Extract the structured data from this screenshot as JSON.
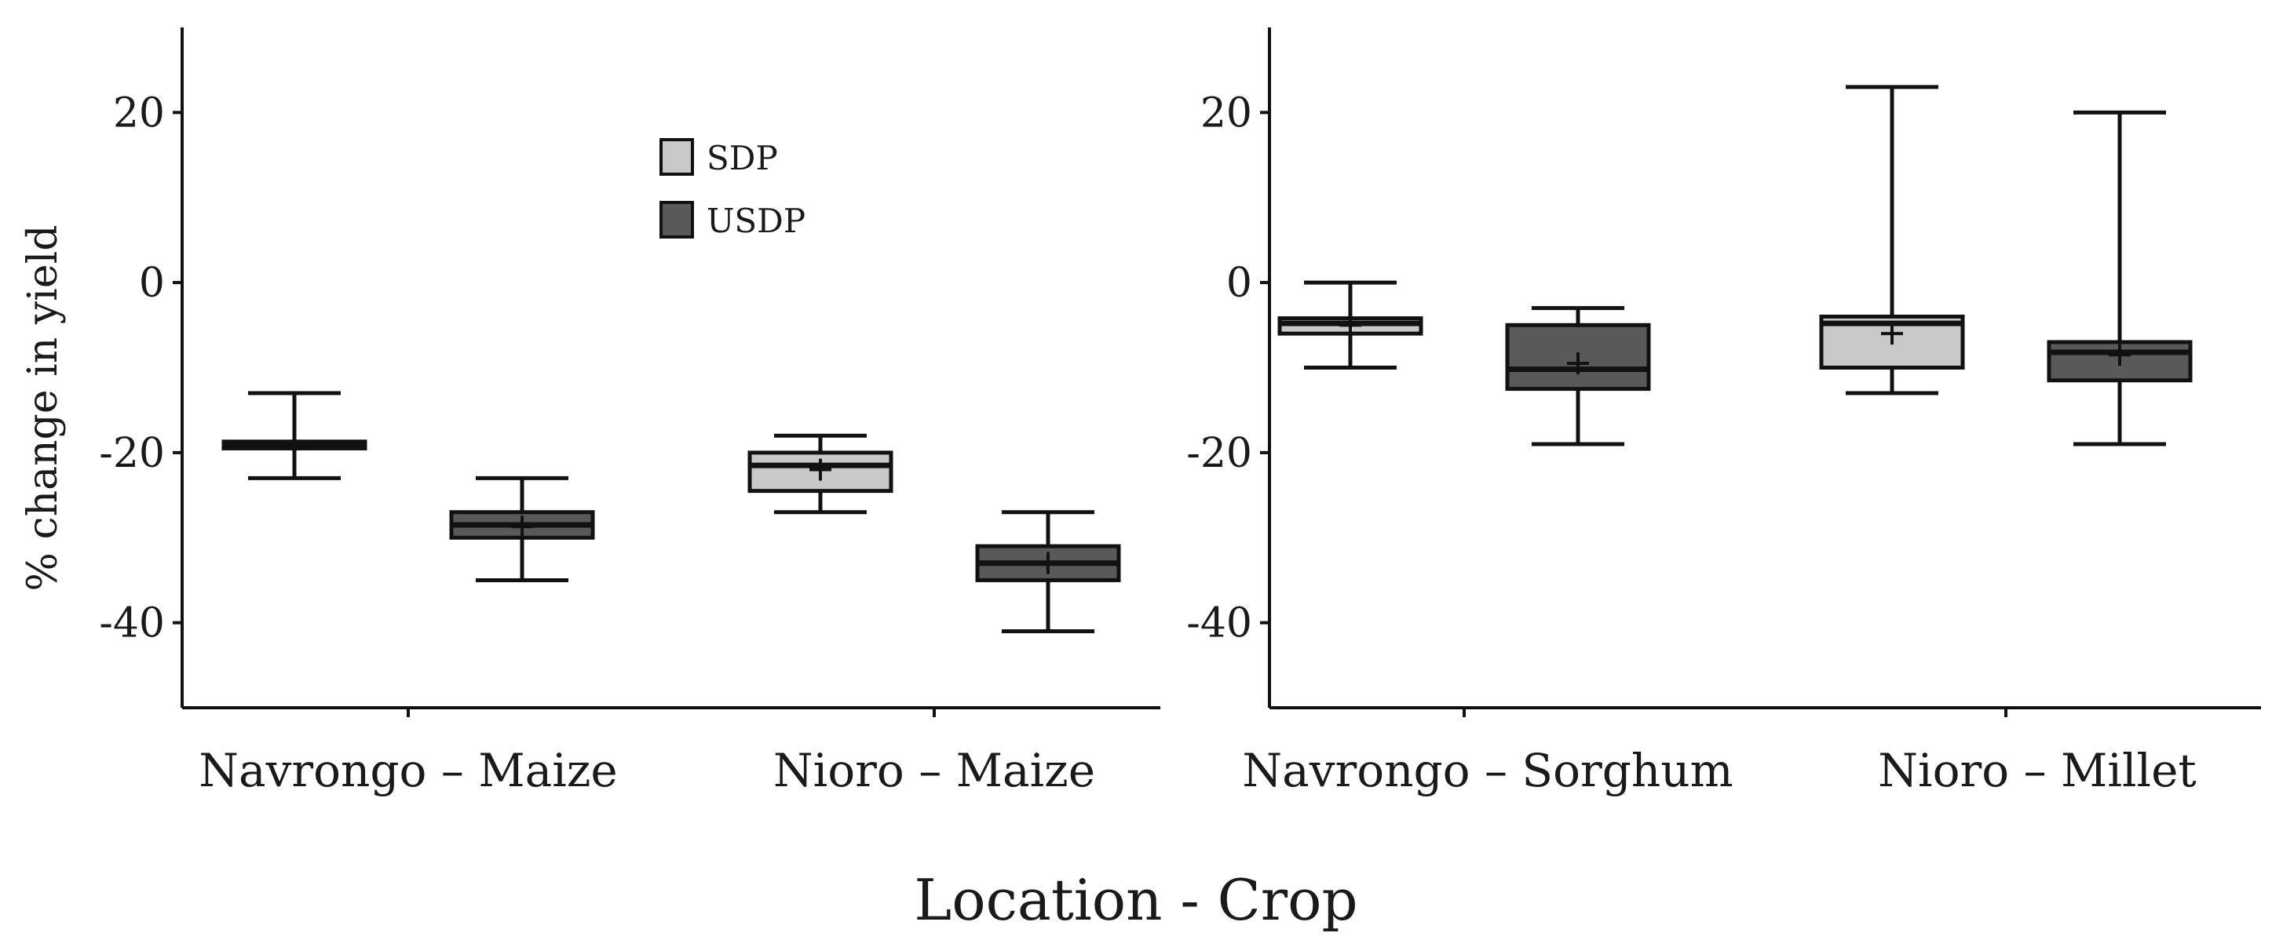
{
  "chart_data": {
    "type": "box",
    "ylabel": "% change in yield",
    "xlabel": "Location - Crop",
    "ylim": [
      -50,
      30
    ],
    "yticks": [
      20,
      0,
      -20,
      -40
    ],
    "legend": {
      "placement": "top-center-left-panel",
      "entries": [
        {
          "name": "SDP",
          "color": "#c8c8c8"
        },
        {
          "name": "USDP",
          "color": "#595959"
        }
      ]
    },
    "panels": [
      {
        "categories": [
          "Navrongo – Maize",
          "Nioro – Maize"
        ],
        "groups": [
          {
            "category": "Navrongo – Maize",
            "boxes": [
              {
                "series": "SDP",
                "min": -23,
                "q1": -19.5,
                "median": -19,
                "q3": -18.7,
                "max": -13,
                "mean": -19.2
              },
              {
                "series": "USDP",
                "min": -35,
                "q1": -30,
                "median": -28.5,
                "q3": -27,
                "max": -23,
                "mean": -28.7
              }
            ]
          },
          {
            "category": "Nioro – Maize",
            "boxes": [
              {
                "series": "SDP",
                "min": -27,
                "q1": -24.5,
                "median": -21.5,
                "q3": -20,
                "max": -18,
                "mean": -22
              },
              {
                "series": "USDP",
                "min": -41,
                "q1": -35,
                "median": -33,
                "q3": -31,
                "max": -27,
                "mean": -33
              }
            ]
          }
        ]
      },
      {
        "categories": [
          "Navrongo – Sorghum",
          "Nioro – Millet"
        ],
        "groups": [
          {
            "category": "Navrongo – Sorghum",
            "boxes": [
              {
                "series": "SDP",
                "min": -10,
                "q1": -6,
                "median": -4.8,
                "q3": -4.2,
                "max": 0,
                "mean": -5
              },
              {
                "series": "USDP",
                "min": -19,
                "q1": -12.5,
                "median": -10.2,
                "q3": -5,
                "max": -3,
                "mean": -9.5
              }
            ]
          },
          {
            "category": "Nioro – Millet",
            "boxes": [
              {
                "series": "SDP",
                "min": -13,
                "q1": -10,
                "median": -4.8,
                "q3": -4,
                "max": 23,
                "mean": -6
              },
              {
                "series": "USDP",
                "min": -19,
                "q1": -11.5,
                "median": -8.2,
                "q3": -7,
                "max": 20,
                "mean": -8.5
              }
            ]
          }
        ]
      }
    ]
  }
}
